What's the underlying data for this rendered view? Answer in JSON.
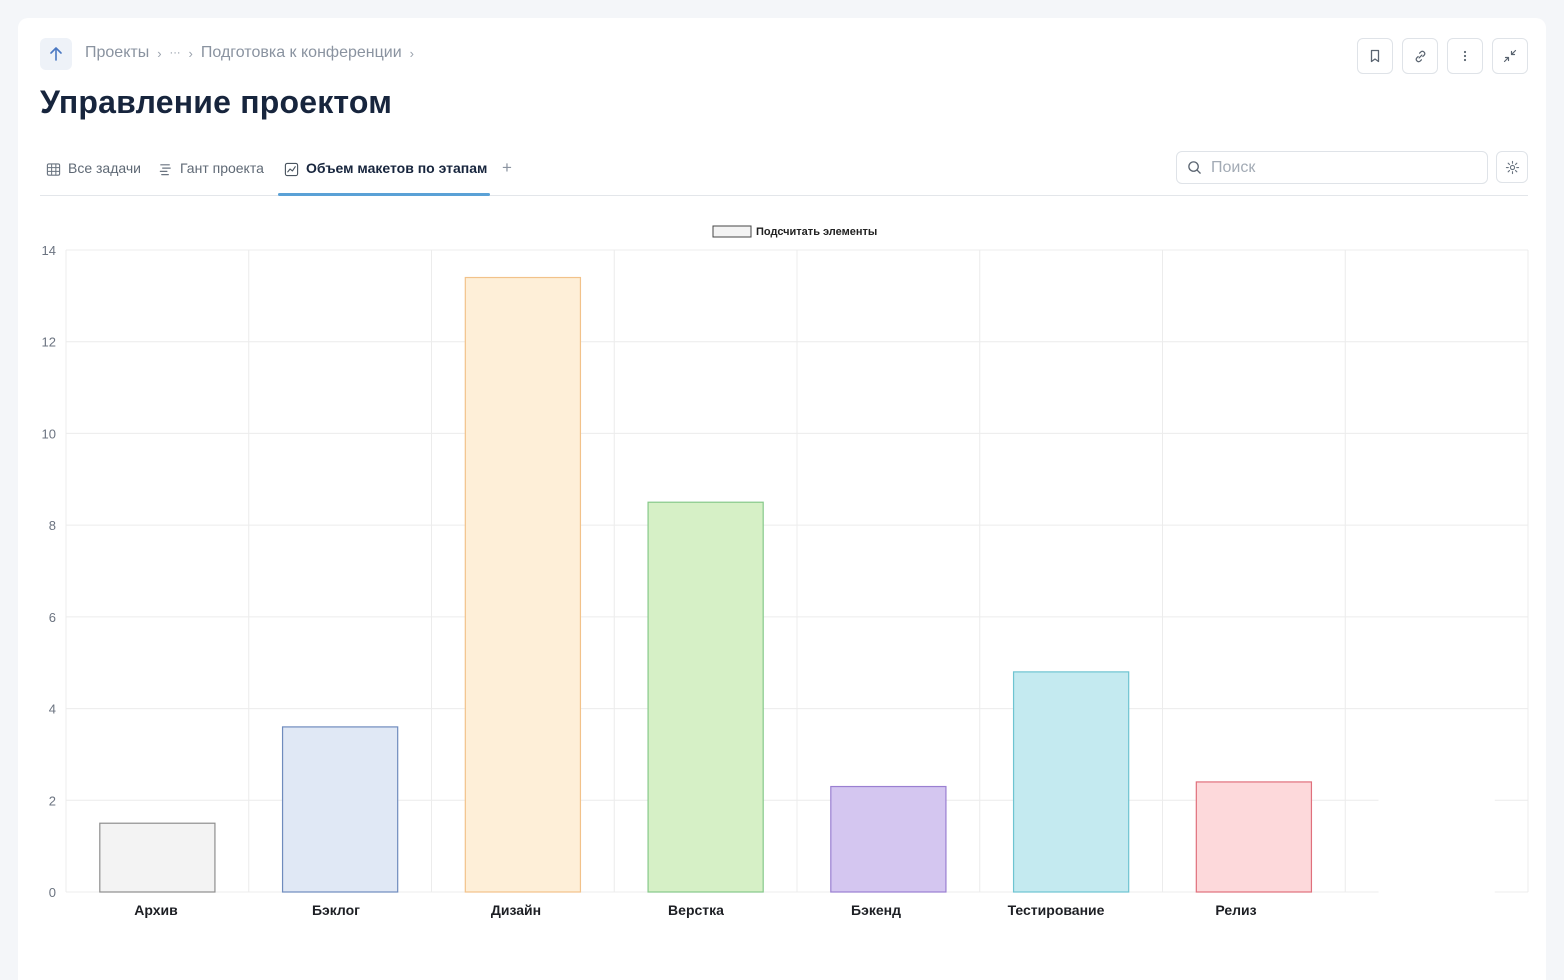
{
  "breadcrumb": {
    "items": [
      "Проекты",
      "···",
      "Подготовка к конференции"
    ]
  },
  "page": {
    "title": "Управление проектом"
  },
  "tabs": [
    {
      "label": "Все задачи",
      "icon": "table-icon"
    },
    {
      "label": "Гант проекта",
      "icon": "gantt-icon"
    },
    {
      "label": "Объем макетов по этапам",
      "icon": "chart-icon",
      "active": true
    }
  ],
  "search": {
    "placeholder": "Поиск",
    "value": ""
  },
  "chart_data": {
    "type": "bar",
    "title": "",
    "xlabel": "",
    "ylabel": "",
    "legend": {
      "label": "Подсчитать элементы",
      "position": "top-center"
    },
    "ylim": [
      0,
      14
    ],
    "yticks": [
      0,
      2,
      4,
      6,
      8,
      10,
      12,
      14
    ],
    "grid": true,
    "categories": [
      "Архив",
      "Бэклог",
      "Дизайн",
      "Верстка",
      "Бэкенд",
      "Тестирование",
      "Релиз",
      ""
    ],
    "series": [
      {
        "name": "Подсчитать элементы",
        "values": [
          1.5,
          3.6,
          13.4,
          8.5,
          2.3,
          4.8,
          2.4,
          2.4
        ]
      }
    ],
    "bar_colors": [
      {
        "fill": "#f3f3f3",
        "stroke": "#8e8e8e"
      },
      {
        "fill": "#e0e8f5",
        "stroke": "#6f8bbd"
      },
      {
        "fill": "#feefd8",
        "stroke": "#f2c28a"
      },
      {
        "fill": "#d6f0c6",
        "stroke": "#86c98a"
      },
      {
        "fill": "#d4c6f0",
        "stroke": "#9a7fd1"
      },
      {
        "fill": "#c4eaf0",
        "stroke": "#6ec4d1"
      },
      {
        "fill": "#fdd9db",
        "stroke": "#e0707c"
      },
      {
        "fill": "#ffffff",
        "stroke": "#ffffff"
      }
    ],
    "legend_swatch": {
      "fill": "#f3f3f3",
      "stroke": "#444444"
    }
  }
}
